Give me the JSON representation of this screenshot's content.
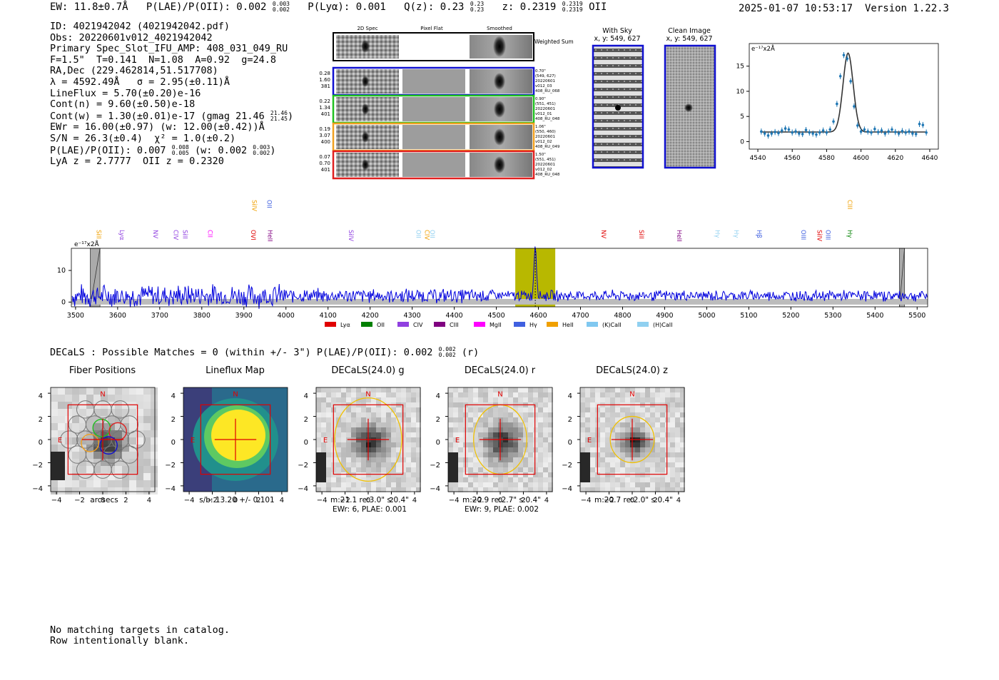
{
  "header": {
    "ew": "EW: 11.8±0.7Å",
    "plae_label": "P(LAE)/P(OII): 0.002",
    "plae_hi": "0.003",
    "plae_lo": "0.002",
    "plya": "P(Lyα): 0.001",
    "qz_label": "Q(z): 0.23",
    "qz_hi": "0.23",
    "qz_lo": "0.23",
    "z_label": "z: 0.2319",
    "z_hi": "0.2319",
    "z_lo": "0.2319",
    "z_line": "OII",
    "timestamp": "2025-01-07 10:53:17",
    "version": "Version 1.22.3"
  },
  "info": {
    "id": "ID: 4021942042 (4021942042.pdf)",
    "obs": "Obs: 20220601v012_4021942042",
    "primary": "Primary Spec_Slot_IFU_AMP: 408_031_049_RU",
    "fitline": "F=1.5\"  T=0.141  N=1.08  A=0.92  g=24.8",
    "radec": "RA,Dec (229.462814,51.517708)",
    "lambda": "λ = 4592.49Å   σ = 2.95(±0.11)Å",
    "lineflux": "LineFlux = 5.70(±0.20)e-16",
    "contn": "Cont(n) = 9.60(±0.50)e-18",
    "contw": "Cont(w) = 1.30(±0.01)e-17 (gmag 21.46",
    "contw_hi": "21.46",
    "contw_lo": "21.45",
    "ewr": "EWr = 16.00(±0.97) (w: 12.00(±0.42))Å",
    "sn": "S/N = 26.3(±0.4)  χ² = 1.0(±0.2)",
    "plae": "P(LAE)/P(OII): 0.007",
    "plae_hi": "0.008",
    "plae_lo": "0.005",
    "plae_w": "(w: 0.002",
    "plae_w_hi": "0.003",
    "plae_w_lo": "0.002",
    "lyaz": "LyA z = 2.7777  OII z = 0.2320"
  },
  "cutouts": {
    "col_headers": [
      "2D Spec",
      "Pixel Flat",
      "Smoothed"
    ],
    "weighted_label": "Weighted Sum",
    "rows": [
      {
        "left": [
          "0.28",
          "1.60",
          "381"
        ],
        "right": [
          "0.70\"",
          "(549, 627)",
          "20220601",
          "v012_03",
          "408_RU_068"
        ],
        "color": "#1010d0"
      },
      {
        "left": [
          "0.22",
          "1.34",
          "401"
        ],
        "right": [
          "0.90\"",
          "(551, 451)",
          "20220601",
          "v012_01",
          "408_RU_048"
        ],
        "color": "#20c020"
      },
      {
        "left": [
          "0.19",
          "3.07",
          "400"
        ],
        "right": [
          "1.06\"",
          "(550, 460)",
          "20220601",
          "v012_02",
          "408_RU_049"
        ],
        "color": "#f0a020"
      },
      {
        "left": [
          "0.07",
          "0.70",
          "401"
        ],
        "right": [
          "1.50\"",
          "(551, 451)",
          "20220601",
          "v012_02",
          "408_RU_048"
        ],
        "color": "#e02020"
      }
    ],
    "with_sky": "With Sky",
    "with_sky_xy": "x, y: 549, 627",
    "clean": "Clean Image",
    "clean_xy": "x, y: 549, 627"
  },
  "colors": {
    "blue": "#0000dd",
    "olive": "#b8b800",
    "fit": "#333333",
    "points": "#1f77b4",
    "red": "#e00000",
    "gold": "#f0c000"
  },
  "chart_data": [
    {
      "type": "scatter",
      "title": "",
      "ylabel_unit": "e⁻¹⁷x2Å",
      "xlim": [
        4535,
        4645
      ],
      "ylim": [
        -1.5,
        19.5
      ],
      "xticks": [
        4540,
        4560,
        4580,
        4600,
        4620,
        4640
      ],
      "yticks": [
        0,
        5,
        10,
        15
      ],
      "x": [
        4542,
        4544,
        4546,
        4548,
        4550,
        4552,
        4554,
        4556,
        4558,
        4560,
        4562,
        4564,
        4566,
        4568,
        4570,
        4572,
        4574,
        4576,
        4578,
        4580,
        4582,
        4584,
        4586,
        4588,
        4590,
        4592,
        4594,
        4596,
        4598,
        4600,
        4602,
        4604,
        4606,
        4608,
        4610,
        4612,
        4614,
        4616,
        4618,
        4620,
        4622,
        4624,
        4626,
        4628,
        4630,
        4632,
        4634,
        4636,
        4638
      ],
      "y": [
        2.0,
        1.6,
        1.2,
        1.6,
        1.9,
        1.7,
        2.2,
        2.6,
        2.4,
        1.8,
        2.0,
        1.6,
        1.5,
        2.3,
        1.8,
        1.6,
        1.4,
        1.8,
        2.2,
        1.8,
        2.4,
        4.0,
        7.5,
        13.0,
        17.2,
        16.5,
        12.0,
        7.0,
        3.2,
        2.0,
        2.4,
        2.0,
        1.8,
        2.5,
        1.9,
        2.2,
        1.6,
        2.0,
        2.4,
        1.9,
        1.6,
        2.1,
        1.8,
        2.0,
        1.6,
        1.5,
        3.5,
        3.3,
        1.8
      ],
      "fit": {
        "center": 4592.5,
        "sigma": 2.95,
        "amp": 15.7,
        "continuum": 1.9
      }
    },
    {
      "type": "line",
      "ylabel_unit": "e⁻¹⁷x2Å",
      "xlim": [
        3490,
        5525
      ],
      "ylim": [
        -1.5,
        17
      ],
      "xticks": [
        3500,
        3600,
        3700,
        3800,
        3900,
        4000,
        4100,
        4200,
        4300,
        4400,
        4500,
        4600,
        4700,
        4800,
        4900,
        5000,
        5100,
        5200,
        5300,
        5400,
        5500
      ],
      "yticks": [
        0,
        10
      ],
      "emission_peak": {
        "x": 4592.5,
        "amp": 16.5,
        "sigma": 2.95
      },
      "highlight_band": [
        4545,
        4640
      ],
      "masked_bands": [
        [
          3535,
          3558
        ],
        [
          5458,
          5470
        ]
      ],
      "legend": [
        {
          "label": "Lyα",
          "color": "#e00000"
        },
        {
          "label": "OII",
          "color": "#008000"
        },
        {
          "label": "CIV",
          "color": "#9040e0"
        },
        {
          "label": "CIII",
          "color": "#800080"
        },
        {
          "label": "MgII",
          "color": "#ff00ff"
        },
        {
          "label": "Hγ",
          "color": "#4060e0"
        },
        {
          "label": "HeII",
          "color": "#f0a000"
        },
        {
          "label": "(K)CaII",
          "color": "#80c8f0"
        },
        {
          "label": "(H)CaII",
          "color": "#90d0f0"
        }
      ],
      "line_labels": [
        {
          "label": "SiII",
          "x": 3545,
          "row": 1,
          "color": "#f0a000"
        },
        {
          "label": "Lyα",
          "x": 3600,
          "row": 1,
          "color": "#9040e0"
        },
        {
          "label": "NV",
          "x": 3680,
          "row": 1,
          "color": "#9040e0"
        },
        {
          "label": "CIV",
          "x": 3728,
          "row": 1,
          "color": "#9040e0"
        },
        {
          "label": "SiII",
          "x": 3750,
          "row": 1,
          "color": "#9040e0"
        },
        {
          "label": "CII",
          "x": 3810,
          "row": 1,
          "color": "#ff00ff"
        },
        {
          "label": "SiIV",
          "x": 3915,
          "row": 0,
          "color": "#f0a000"
        },
        {
          "label": "OVI",
          "x": 3912,
          "row": 1,
          "color": "#e00000"
        },
        {
          "label": "OII",
          "x": 3950,
          "row": 0,
          "color": "#4060e0"
        },
        {
          "label": "HeII",
          "x": 3952,
          "row": 1,
          "color": "#800080"
        },
        {
          "label": "SiIV",
          "x": 4145,
          "row": 1,
          "color": "#9040e0"
        },
        {
          "label": "OII",
          "x": 4305,
          "row": 1,
          "color": "#90d0f0"
        },
        {
          "label": "CIV",
          "x": 4325,
          "row": 1,
          "color": "#f0a000"
        },
        {
          "label": "OII",
          "x": 4338,
          "row": 1,
          "color": "#90d0f0"
        },
        {
          "label": "NV",
          "x": 4745,
          "row": 1,
          "color": "#e00000"
        },
        {
          "label": "SiII",
          "x": 4835,
          "row": 1,
          "color": "#e00000"
        },
        {
          "label": "HeII",
          "x": 4925,
          "row": 1,
          "color": "#800080"
        },
        {
          "label": "Hγ",
          "x": 5015,
          "row": 1,
          "color": "#90d0f0"
        },
        {
          "label": "Hγ",
          "x": 5060,
          "row": 1,
          "color": "#90d0f0"
        },
        {
          "label": "Hβ",
          "x": 5115,
          "row": 1,
          "color": "#4060e0"
        },
        {
          "label": "OIII",
          "x": 5220,
          "row": 1,
          "color": "#4060e0"
        },
        {
          "label": "SiIV",
          "x": 5258,
          "row": 1,
          "color": "#e00000"
        },
        {
          "label": "OIII",
          "x": 5278,
          "row": 1,
          "color": "#4060e0"
        },
        {
          "label": "CIII",
          "x": 5330,
          "row": 0,
          "color": "#f0a000"
        },
        {
          "label": "Hγ",
          "x": 5330,
          "row": 1,
          "color": "#008000"
        }
      ]
    }
  ],
  "decals": {
    "line": "DECaLS : Possible Matches = 0 (within +/- 3\")  P(LAE)/P(OII): 0.002",
    "hi": "0.002",
    "lo": "0.002",
    "suffix": "(r)"
  },
  "panels": [
    {
      "title": "Fiber Positions",
      "cap1": "arcsecs",
      "cap2": "",
      "type": "fiber"
    },
    {
      "title": "Lineflux Map",
      "cap1": "s/b: 13.20 +/- 0.101",
      "cap2": "",
      "type": "flux"
    },
    {
      "title": "DECaLS(24.0) g",
      "cap1": "m:21.1  re:3.0\"  s:0.4\"",
      "cap2": "EWr: 6, PLAE: 0.001",
      "type": "g"
    },
    {
      "title": "DECaLS(24.0) r",
      "cap1": "m:20.9  re:2.7\"  s:0.4\"",
      "cap2": "EWr: 9, PLAE: 0.002",
      "type": "r"
    },
    {
      "title": "DECaLS(24.0) z",
      "cap1": "m:20.7  re:2.0\"  s:0.4\"",
      "cap2": "",
      "type": "z"
    }
  ],
  "panel_axis": {
    "ticks": [
      "−4",
      "−2",
      "0",
      "2",
      "4"
    ],
    "north": "N",
    "east": "E"
  },
  "footer": {
    "line1": "No matching targets in catalog.",
    "line2": "Row intentionally blank."
  }
}
